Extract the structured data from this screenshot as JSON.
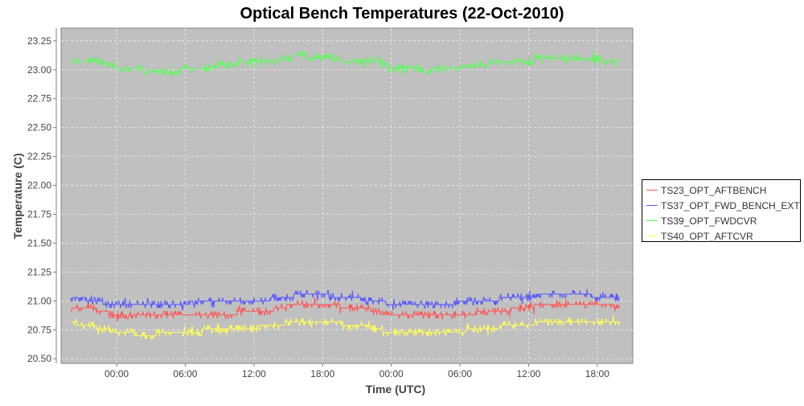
{
  "chart_data": {
    "type": "line",
    "title": "Optical Bench Temperatures (22-Oct-2010)",
    "xlabel": "Time (UTC)",
    "ylabel": "Temperature (C)",
    "ylim": [
      20.46,
      23.36
    ],
    "xlim_hours": [
      -4.85,
      45.1
    ],
    "yticks": [
      "20.50",
      "20.75",
      "21.00",
      "21.25",
      "21.50",
      "21.75",
      "22.00",
      "22.25",
      "22.50",
      "22.75",
      "23.00",
      "23.25"
    ],
    "ytick_values": [
      20.5,
      20.75,
      21.0,
      21.25,
      21.5,
      21.75,
      22.0,
      22.25,
      22.5,
      22.75,
      23.0,
      23.25
    ],
    "xticks": [
      "00:00",
      "06:00",
      "12:00",
      "18:00",
      "00:00",
      "06:00",
      "12:00",
      "18:00"
    ],
    "xtick_hours": [
      0,
      6,
      12,
      18,
      24,
      30,
      36,
      42
    ],
    "x_hours": [
      -4,
      -3,
      -2,
      -1,
      0,
      1,
      2,
      3,
      4,
      5,
      6,
      7,
      8,
      9,
      10,
      11,
      12,
      13,
      14,
      15,
      16,
      17,
      18,
      19,
      20,
      21,
      22,
      23,
      24,
      25,
      26,
      27,
      28,
      29,
      30,
      31,
      32,
      33,
      34,
      35,
      36,
      37,
      38,
      39,
      40,
      41,
      42,
      43,
      44
    ],
    "grid": true,
    "legend_position": "right",
    "series": [
      {
        "name": "TS23_OPT_AFTBENCH",
        "color": "#ff5555",
        "values": [
          20.95,
          20.95,
          20.93,
          20.9,
          20.88,
          20.87,
          20.87,
          20.87,
          20.87,
          20.88,
          20.88,
          20.88,
          20.88,
          20.89,
          20.89,
          20.9,
          20.9,
          20.91,
          20.93,
          20.96,
          20.97,
          20.97,
          20.97,
          20.96,
          20.95,
          20.94,
          20.93,
          20.9,
          20.88,
          20.87,
          20.87,
          20.87,
          20.87,
          20.88,
          20.88,
          20.89,
          20.9,
          20.91,
          20.92,
          20.93,
          20.95,
          20.96,
          20.97,
          20.97,
          20.97,
          20.97,
          20.97,
          20.96,
          20.95
        ]
      },
      {
        "name": "TS37_OPT_FWD_BENCH_EXT",
        "color": "#5555ff",
        "values": [
          21.02,
          21.02,
          21.0,
          20.98,
          20.97,
          20.97,
          20.96,
          20.96,
          20.97,
          20.97,
          20.98,
          20.99,
          21.0,
          21.0,
          21.0,
          21.0,
          21.0,
          21.01,
          21.02,
          21.04,
          21.05,
          21.05,
          21.05,
          21.04,
          21.03,
          21.02,
          21.0,
          20.99,
          20.98,
          20.97,
          20.97,
          20.97,
          20.98,
          20.98,
          20.99,
          21.0,
          21.0,
          21.01,
          21.02,
          21.03,
          21.04,
          21.05,
          21.05,
          21.05,
          21.05,
          21.05,
          21.04,
          21.03,
          21.03
        ]
      },
      {
        "name": "TS39_OPT_FWDCVR",
        "color": "#55ff55",
        "values": [
          23.07,
          23.07,
          23.07,
          23.06,
          23.02,
          23.01,
          23.0,
          22.98,
          22.98,
          22.99,
          23.0,
          23.01,
          23.02,
          23.04,
          23.05,
          23.06,
          23.06,
          23.06,
          23.07,
          23.11,
          23.12,
          23.11,
          23.1,
          23.09,
          23.08,
          23.07,
          23.07,
          23.06,
          23.01,
          23.0,
          23.0,
          22.99,
          23.0,
          23.01,
          23.02,
          23.04,
          23.05,
          23.06,
          23.07,
          23.07,
          23.08,
          23.09,
          23.1,
          23.1,
          23.1,
          23.1,
          23.09,
          23.08,
          23.08
        ]
      },
      {
        "name": "TS40_OPT_AFTCVR",
        "color": "#ffff55",
        "values": [
          20.81,
          20.8,
          20.78,
          20.76,
          20.73,
          20.72,
          20.71,
          20.71,
          20.72,
          20.72,
          20.73,
          20.74,
          20.75,
          20.76,
          20.76,
          20.77,
          20.77,
          20.78,
          20.79,
          20.81,
          20.82,
          20.82,
          20.82,
          20.81,
          20.8,
          20.79,
          20.78,
          20.75,
          20.73,
          20.72,
          20.72,
          20.72,
          20.72,
          20.73,
          20.74,
          20.75,
          20.76,
          20.77,
          20.78,
          20.79,
          20.8,
          20.81,
          20.82,
          20.83,
          20.83,
          20.83,
          20.83,
          20.82,
          20.82
        ]
      }
    ]
  }
}
